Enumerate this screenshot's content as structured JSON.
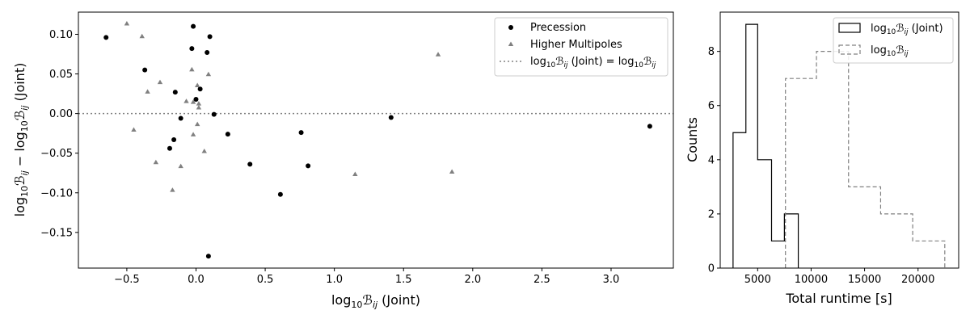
{
  "chart_data": [
    {
      "type": "scatter",
      "xlabel": "log10B_ij (Joint)",
      "ylabel": "log10B_ij − log10B_ij (Joint)",
      "xlim": [
        -0.85,
        3.45
      ],
      "ylim": [
        -0.195,
        0.128
      ],
      "xticks": [
        -0.5,
        0.0,
        0.5,
        1.0,
        1.5,
        2.0,
        2.5,
        3.0
      ],
      "xtick_labels": [
        "−0.5",
        "0.0",
        "0.5",
        "1.0",
        "1.5",
        "2.0",
        "2.5",
        "3.0"
      ],
      "yticks": [
        0.1,
        0.05,
        0.0,
        -0.05,
        -0.1,
        -0.15
      ],
      "ytick_labels": [
        "0.10",
        "0.05",
        "0.00",
        "−0.05",
        "−0.10",
        "−0.15"
      ],
      "legend_position": "top-right",
      "reference_line": {
        "y": 0.0,
        "style": "dotted",
        "color": "#808080"
      },
      "series": [
        {
          "name": "Precession",
          "marker": "circle",
          "color": "#000000",
          "points": [
            [
              -0.65,
              0.096
            ],
            [
              -0.37,
              0.055
            ],
            [
              -0.15,
              0.027
            ],
            [
              -0.11,
              -0.006
            ],
            [
              -0.19,
              -0.044
            ],
            [
              -0.16,
              -0.033
            ],
            [
              -0.03,
              0.082
            ],
            [
              -0.02,
              0.11
            ],
            [
              0.0,
              0.018
            ],
            [
              0.03,
              0.031
            ],
            [
              0.08,
              0.077
            ],
            [
              0.1,
              0.097
            ],
            [
              0.13,
              -0.001
            ],
            [
              0.23,
              -0.026
            ],
            [
              0.39,
              -0.064
            ],
            [
              0.61,
              -0.102
            ],
            [
              0.76,
              -0.024
            ],
            [
              0.81,
              -0.066
            ],
            [
              1.41,
              -0.005
            ],
            [
              3.28,
              -0.016
            ],
            [
              0.09,
              -0.18
            ]
          ]
        },
        {
          "name": "Higher Multipoles",
          "marker": "triangle",
          "color": "#808080",
          "points": [
            [
              -0.5,
              0.114
            ],
            [
              -0.39,
              0.098
            ],
            [
              -0.35,
              0.028
            ],
            [
              -0.26,
              0.04
            ],
            [
              -0.45,
              -0.02
            ],
            [
              -0.29,
              -0.061
            ],
            [
              -0.17,
              -0.096
            ],
            [
              -0.11,
              -0.066
            ],
            [
              -0.07,
              0.016
            ],
            [
              -0.03,
              0.056
            ],
            [
              -0.02,
              0.015
            ],
            [
              -0.02,
              -0.026
            ],
            [
              0.01,
              -0.013
            ],
            [
              0.01,
              0.036
            ],
            [
              0.02,
              0.008
            ],
            [
              0.02,
              0.013
            ],
            [
              0.06,
              -0.047
            ],
            [
              0.09,
              0.05
            ],
            [
              1.15,
              -0.076
            ],
            [
              1.75,
              0.075
            ],
            [
              1.85,
              -0.073
            ]
          ]
        }
      ],
      "legend": {
        "precession": "Precession",
        "higher_multipoles": "Higher Multipoles",
        "reference": "log10B_ij (Joint) = log10B_ij"
      }
    },
    {
      "type": "histogram",
      "xlabel": "Total runtime [s]",
      "ylabel": "Counts",
      "xlim": [
        1500,
        23800
      ],
      "ylim": [
        0,
        9.45
      ],
      "xticks": [
        5000,
        10000,
        15000,
        20000
      ],
      "xtick_labels": [
        "5000",
        "10000",
        "15000",
        "20000"
      ],
      "yticks": [
        0,
        2,
        4,
        6,
        8
      ],
      "ytick_labels": [
        "0",
        "2",
        "4",
        "6",
        "8"
      ],
      "legend_position": "top-right",
      "series": [
        {
          "name": "log10B_ij (Joint)",
          "style": "solid",
          "color": "#000000",
          "edges": [
            2700,
            3900,
            5000,
            6300,
            7500,
            8800
          ],
          "counts": [
            5,
            9,
            4,
            1,
            2
          ]
        },
        {
          "name": "log10B_ij",
          "style": "dashed",
          "color": "#808080",
          "edges": [
            7600,
            10500,
            13500,
            16500,
            19500,
            22500
          ],
          "counts": [
            7,
            8,
            3,
            2,
            1
          ]
        }
      ]
    }
  ]
}
